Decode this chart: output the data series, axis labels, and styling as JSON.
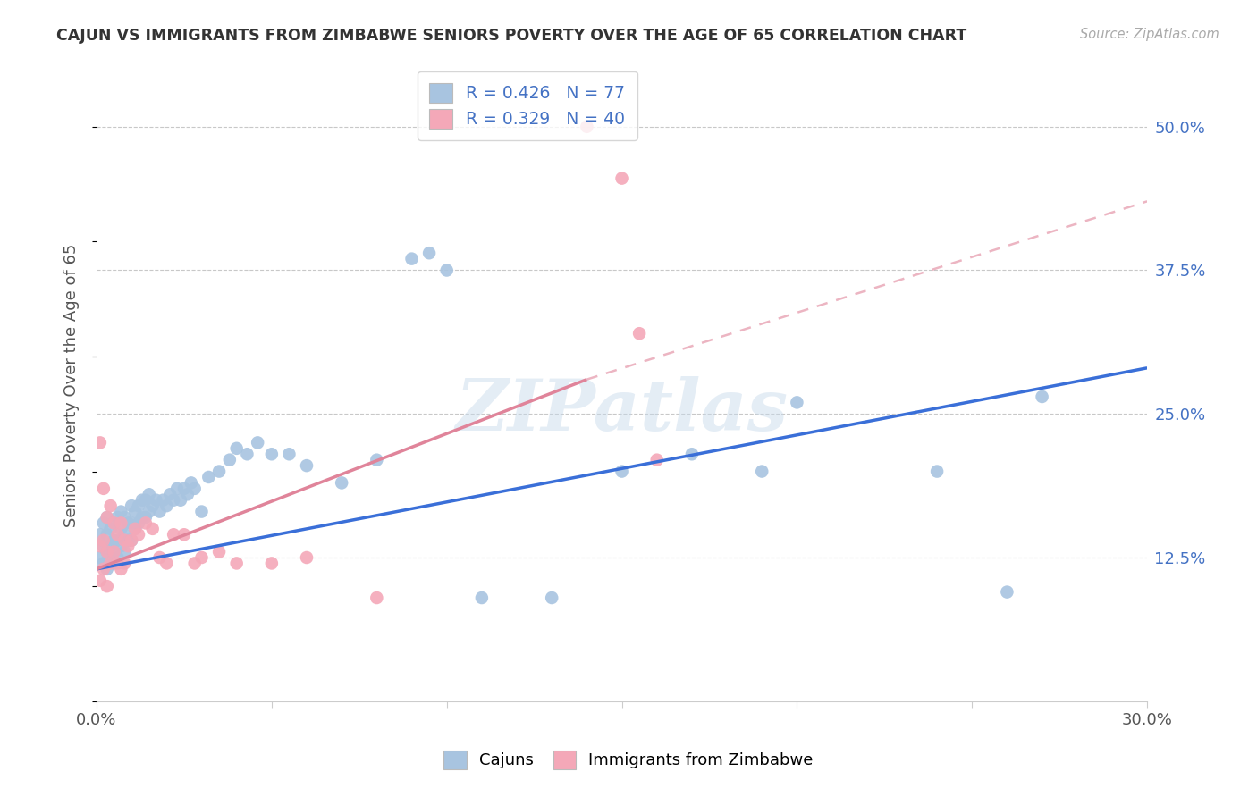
{
  "title": "CAJUN VS IMMIGRANTS FROM ZIMBABWE SENIORS POVERTY OVER THE AGE OF 65 CORRELATION CHART",
  "source": "Source: ZipAtlas.com",
  "ylabel": "Seniors Poverty Over the Age of 65",
  "xlim": [
    0.0,
    0.3
  ],
  "ylim": [
    0.0,
    0.55
  ],
  "ytick_positions": [
    0.0,
    0.125,
    0.25,
    0.375,
    0.5
  ],
  "ytick_labels": [
    "",
    "12.5%",
    "25.0%",
    "37.5%",
    "50.0%"
  ],
  "xtick_positions": [
    0.0,
    0.05,
    0.1,
    0.15,
    0.2,
    0.25,
    0.3
  ],
  "xtick_labels": [
    "0.0%",
    "",
    "",
    "",
    "",
    "",
    "30.0%"
  ],
  "cajuns_R": 0.426,
  "cajuns_N": 77,
  "zimbabwe_R": 0.329,
  "zimbabwe_N": 40,
  "cajun_color": "#a8c4e0",
  "zimbabwe_color": "#f4a8b8",
  "trend_cajun_color": "#3a6fd8",
  "trend_zimbabwe_color": "#e0849a",
  "watermark": "ZIPatlas",
  "cajun_trend_x0": 0.0,
  "cajun_trend_y0": 0.115,
  "cajun_trend_x1": 0.3,
  "cajun_trend_y1": 0.29,
  "zim_trend_x0": 0.0,
  "zim_trend_y0": 0.115,
  "zim_trend_x1_solid": 0.14,
  "zim_trend_y1_solid": 0.28,
  "zim_trend_x2": 0.3,
  "zim_trend_y2": 0.435,
  "cajun_x": [
    0.001,
    0.001,
    0.002,
    0.002,
    0.002,
    0.003,
    0.003,
    0.003,
    0.003,
    0.004,
    0.004,
    0.004,
    0.005,
    0.005,
    0.005,
    0.005,
    0.006,
    0.006,
    0.006,
    0.007,
    0.007,
    0.007,
    0.008,
    0.008,
    0.008,
    0.009,
    0.009,
    0.01,
    0.01,
    0.01,
    0.011,
    0.011,
    0.012,
    0.012,
    0.013,
    0.013,
    0.014,
    0.014,
    0.015,
    0.015,
    0.016,
    0.017,
    0.018,
    0.019,
    0.02,
    0.021,
    0.022,
    0.023,
    0.024,
    0.025,
    0.026,
    0.027,
    0.028,
    0.03,
    0.032,
    0.035,
    0.038,
    0.04,
    0.043,
    0.046,
    0.05,
    0.055,
    0.06,
    0.07,
    0.08,
    0.09,
    0.095,
    0.1,
    0.11,
    0.13,
    0.15,
    0.17,
    0.19,
    0.2,
    0.24,
    0.26,
    0.27
  ],
  "cajun_y": [
    0.145,
    0.125,
    0.135,
    0.12,
    0.155,
    0.13,
    0.145,
    0.115,
    0.16,
    0.125,
    0.135,
    0.15,
    0.12,
    0.13,
    0.14,
    0.155,
    0.125,
    0.14,
    0.16,
    0.135,
    0.15,
    0.165,
    0.13,
    0.145,
    0.16,
    0.14,
    0.155,
    0.14,
    0.155,
    0.17,
    0.15,
    0.165,
    0.155,
    0.17,
    0.16,
    0.175,
    0.16,
    0.175,
    0.165,
    0.18,
    0.17,
    0.175,
    0.165,
    0.175,
    0.17,
    0.18,
    0.175,
    0.185,
    0.175,
    0.185,
    0.18,
    0.19,
    0.185,
    0.165,
    0.195,
    0.2,
    0.21,
    0.22,
    0.215,
    0.225,
    0.215,
    0.215,
    0.205,
    0.19,
    0.21,
    0.385,
    0.39,
    0.375,
    0.09,
    0.09,
    0.2,
    0.215,
    0.2,
    0.26,
    0.2,
    0.095,
    0.265
  ],
  "zimbabwe_x": [
    0.001,
    0.001,
    0.001,
    0.002,
    0.002,
    0.002,
    0.003,
    0.003,
    0.003,
    0.004,
    0.004,
    0.005,
    0.005,
    0.006,
    0.006,
    0.007,
    0.007,
    0.008,
    0.008,
    0.009,
    0.01,
    0.011,
    0.012,
    0.014,
    0.016,
    0.018,
    0.02,
    0.022,
    0.025,
    0.028,
    0.03,
    0.035,
    0.04,
    0.05,
    0.06,
    0.08,
    0.14,
    0.15,
    0.155,
    0.16
  ],
  "zimbabwe_y": [
    0.225,
    0.135,
    0.105,
    0.185,
    0.14,
    0.115,
    0.16,
    0.13,
    0.1,
    0.17,
    0.12,
    0.155,
    0.13,
    0.145,
    0.12,
    0.155,
    0.115,
    0.14,
    0.12,
    0.135,
    0.14,
    0.15,
    0.145,
    0.155,
    0.15,
    0.125,
    0.12,
    0.145,
    0.145,
    0.12,
    0.125,
    0.13,
    0.12,
    0.12,
    0.125,
    0.09,
    0.5,
    0.455,
    0.32,
    0.21
  ]
}
